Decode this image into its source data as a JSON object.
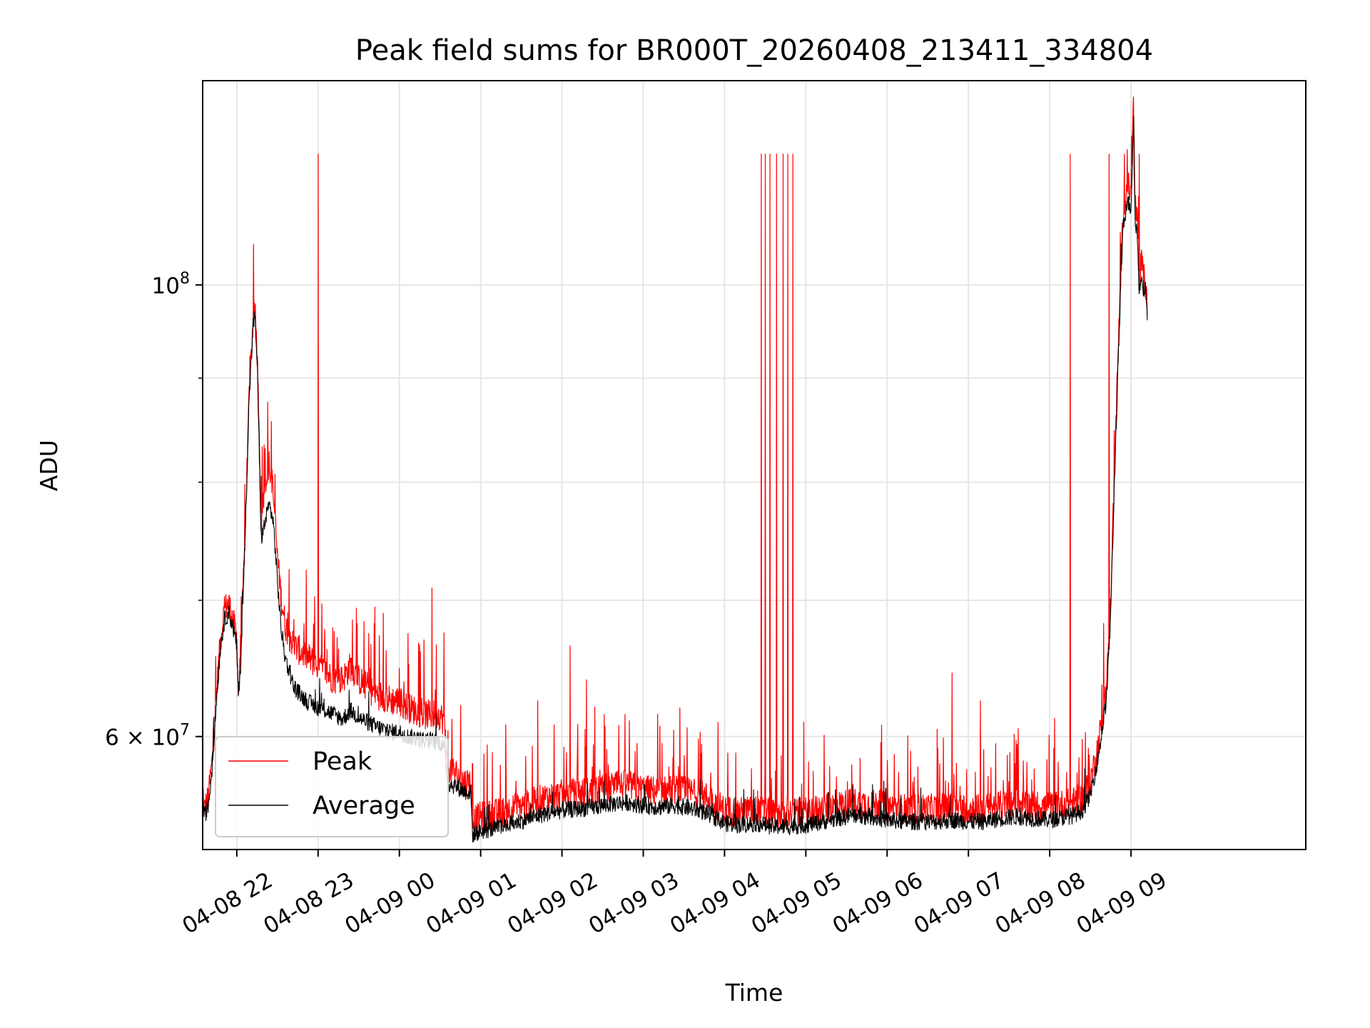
{
  "chart_data": {
    "type": "line",
    "title": "Peak field sums for BR000T_20260408_213411_334804",
    "xlabel": "Time",
    "ylabel": "ADU",
    "yscale": "log",
    "xlim_hours": [
      -2.42,
      11.15
    ],
    "ylim": [
      52800000,
      126000000
    ],
    "grid": true,
    "legend_position": "lower-left",
    "y_major_ticks": [
      {
        "value": 100000000,
        "base": "10",
        "exp": "8",
        "mantissa": ""
      },
      {
        "value": 60000000,
        "base": "10",
        "exp": "7",
        "mantissa": "6 × "
      }
    ],
    "y_minor_gridlines": [
      70000000,
      80000000,
      90000000
    ],
    "x_ticks": [
      {
        "hour": -2,
        "label": "04-08 22"
      },
      {
        "hour": -1,
        "label": "04-08 23"
      },
      {
        "hour": 0,
        "label": "04-09 00"
      },
      {
        "hour": 1,
        "label": "04-09 01"
      },
      {
        "hour": 2,
        "label": "04-09 02"
      },
      {
        "hour": 3,
        "label": "04-09 03"
      },
      {
        "hour": 4,
        "label": "04-09 04"
      },
      {
        "hour": 5,
        "label": "04-09 05"
      },
      {
        "hour": 6,
        "label": "04-09 06"
      },
      {
        "hour": 7,
        "label": "04-09 07"
      },
      {
        "hour": 8,
        "label": "04-09 08"
      },
      {
        "hour": 9,
        "label": "04-09 09"
      }
    ],
    "series": [
      {
        "name": "Peak",
        "color": "#ff0000",
        "note": "hours relative to 04-09 00:00; values in ADU",
        "points": [
          [
            -2.42,
            56800000
          ],
          [
            -2.4,
            55200000
          ],
          [
            -2.35,
            56000000
          ],
          [
            -2.3,
            58500000
          ],
          [
            -2.25,
            63000000
          ],
          [
            -2.2,
            67000000
          ],
          [
            -2.15,
            69300000
          ],
          [
            -2.1,
            69800000
          ],
          [
            -2.05,
            68500000
          ],
          [
            -2.0,
            67000000
          ],
          [
            -1.98,
            63000000
          ],
          [
            -1.95,
            66000000
          ],
          [
            -1.9,
            75000000
          ],
          [
            -1.85,
            88000000
          ],
          [
            -1.8,
            96000000
          ],
          [
            -1.78,
            97500000
          ],
          [
            -1.75,
            93000000
          ],
          [
            -1.7,
            76000000
          ],
          [
            -1.65,
            80000000
          ],
          [
            -1.6,
            82000000
          ],
          [
            -1.55,
            79000000
          ],
          [
            -1.5,
            73500000
          ],
          [
            -1.45,
            70000000
          ],
          [
            -1.4,
            68000000
          ],
          [
            -1.3,
            66500000
          ],
          [
            -1.2,
            66000000
          ],
          [
            -1.1,
            65500000
          ],
          [
            -1.0,
            65000000
          ],
          [
            -0.9,
            64500000
          ],
          [
            -0.8,
            64000000
          ],
          [
            -0.7,
            64000000
          ],
          [
            -0.6,
            65000000
          ],
          [
            -0.5,
            64000000
          ],
          [
            -0.4,
            63500000
          ],
          [
            -0.3,
            63000000
          ],
          [
            -0.2,
            62800000
          ],
          [
            -0.1,
            62500000
          ],
          [
            0.0,
            62500000
          ],
          [
            0.1,
            62000000
          ],
          [
            0.2,
            61800000
          ],
          [
            0.3,
            61500000
          ],
          [
            0.4,
            61500000
          ],
          [
            0.5,
            61500000
          ],
          [
            0.55,
            61000000
          ],
          [
            0.6,
            58000000
          ],
          [
            0.7,
            57500000
          ],
          [
            0.8,
            57000000
          ],
          [
            0.88,
            57000000
          ],
          [
            0.9,
            54500000
          ],
          [
            1.0,
            54800000
          ],
          [
            1.2,
            55000000
          ],
          [
            1.4,
            55300000
          ],
          [
            1.6,
            55600000
          ],
          [
            1.8,
            56000000
          ],
          [
            2.0,
            56200000
          ],
          [
            2.2,
            56300000
          ],
          [
            2.4,
            56400000
          ],
          [
            2.6,
            56700000
          ],
          [
            2.8,
            56800000
          ],
          [
            3.0,
            56500000
          ],
          [
            3.2,
            56400000
          ],
          [
            3.4,
            56500000
          ],
          [
            3.6,
            56300000
          ],
          [
            3.8,
            56000000
          ],
          [
            4.0,
            55200000
          ],
          [
            4.2,
            55100000
          ],
          [
            4.4,
            55200000
          ],
          [
            4.6,
            55000000
          ],
          [
            4.8,
            55000000
          ],
          [
            5.0,
            55100000
          ],
          [
            5.2,
            55300000
          ],
          [
            5.4,
            55500000
          ],
          [
            5.6,
            55700000
          ],
          [
            5.8,
            55600000
          ],
          [
            6.0,
            55400000
          ],
          [
            6.2,
            55300000
          ],
          [
            6.4,
            55300000
          ],
          [
            6.6,
            55300000
          ],
          [
            6.8,
            55400000
          ],
          [
            7.0,
            55300000
          ],
          [
            7.2,
            55300000
          ],
          [
            7.4,
            55500000
          ],
          [
            7.6,
            55600000
          ],
          [
            7.8,
            55500000
          ],
          [
            8.0,
            55400000
          ],
          [
            8.2,
            55600000
          ],
          [
            8.3,
            55700000
          ],
          [
            8.4,
            56000000
          ],
          [
            8.5,
            57000000
          ],
          [
            8.6,
            59500000
          ],
          [
            8.7,
            63500000
          ],
          [
            8.75,
            70000000
          ],
          [
            8.8,
            82000000
          ],
          [
            8.85,
            95000000
          ],
          [
            8.9,
            108000000
          ],
          [
            8.95,
            112000000
          ],
          [
            9.0,
            111000000
          ],
          [
            9.03,
            123000000
          ],
          [
            9.05,
            110000000
          ],
          [
            9.08,
            107000000
          ],
          [
            9.1,
            100000000
          ],
          [
            9.13,
            103000000
          ],
          [
            9.15,
            101000000
          ],
          [
            9.17,
            100500000
          ],
          [
            9.2,
            98000000
          ]
        ],
        "spikes": [
          [
            -2.42,
            116000000
          ],
          [
            -1.0,
            116000000
          ],
          [
            -0.3,
            69500000
          ],
          [
            -0.2,
            69000000
          ],
          [
            0.4,
            71000000
          ],
          [
            0.55,
            67500000
          ],
          [
            1.7,
            62500000
          ],
          [
            2.1,
            66500000
          ],
          [
            2.3,
            64000000
          ],
          [
            3.45,
            62000000
          ],
          [
            3.92,
            61000000
          ],
          [
            4.45,
            116000000
          ],
          [
            4.5,
            116000000
          ],
          [
            4.56,
            116000000
          ],
          [
            4.64,
            116000000
          ],
          [
            4.72,
            116000000
          ],
          [
            4.78,
            116000000
          ],
          [
            4.84,
            116000000
          ],
          [
            5.93,
            60800000
          ],
          [
            6.8,
            64500000
          ],
          [
            7.15,
            62500000
          ],
          [
            7.6,
            59500000
          ],
          [
            8.25,
            116000000
          ],
          [
            8.73,
            116000000
          ],
          [
            8.92,
            116000000
          ],
          [
            9.1,
            116000000
          ]
        ]
      },
      {
        "name": "Average",
        "color": "#000000",
        "note": "hours relative to 04-09 00:00; values in ADU",
        "points": [
          [
            -2.42,
            56500000
          ],
          [
            -2.4,
            54800000
          ],
          [
            -2.35,
            55500000
          ],
          [
            -2.3,
            58000000
          ],
          [
            -2.25,
            62500000
          ],
          [
            -2.2,
            66500000
          ],
          [
            -2.15,
            68500000
          ],
          [
            -2.1,
            69000000
          ],
          [
            -2.05,
            68000000
          ],
          [
            -2.0,
            66500000
          ],
          [
            -1.98,
            62700000
          ],
          [
            -1.95,
            65500000
          ],
          [
            -1.9,
            74500000
          ],
          [
            -1.85,
            87500000
          ],
          [
            -1.8,
            95500000
          ],
          [
            -1.78,
            96500000
          ],
          [
            -1.75,
            92000000
          ],
          [
            -1.7,
            75000000
          ],
          [
            -1.65,
            76500000
          ],
          [
            -1.6,
            78000000
          ],
          [
            -1.55,
            76500000
          ],
          [
            -1.5,
            71500000
          ],
          [
            -1.45,
            67500000
          ],
          [
            -1.4,
            65500000
          ],
          [
            -1.3,
            63500000
          ],
          [
            -1.2,
            62800000
          ],
          [
            -1.1,
            62300000
          ],
          [
            -1.0,
            62000000
          ],
          [
            -0.9,
            61800000
          ],
          [
            -0.8,
            61500000
          ],
          [
            -0.7,
            61200000
          ],
          [
            -0.6,
            61800000
          ],
          [
            -0.5,
            61300000
          ],
          [
            -0.4,
            61000000
          ],
          [
            -0.3,
            60700000
          ],
          [
            -0.2,
            60500000
          ],
          [
            -0.1,
            60300000
          ],
          [
            0.0,
            60300000
          ],
          [
            0.1,
            60000000
          ],
          [
            0.2,
            59900000
          ],
          [
            0.3,
            59700000
          ],
          [
            0.4,
            59700000
          ],
          [
            0.5,
            59600000
          ],
          [
            0.55,
            59300000
          ],
          [
            0.6,
            56900000
          ],
          [
            0.7,
            56700000
          ],
          [
            0.8,
            56400000
          ],
          [
            0.88,
            56300000
          ],
          [
            0.9,
            53700000
          ],
          [
            1.0,
            53900000
          ],
          [
            1.2,
            54100000
          ],
          [
            1.4,
            54400000
          ],
          [
            1.6,
            54700000
          ],
          [
            1.8,
            55000000
          ],
          [
            2.0,
            55200000
          ],
          [
            2.2,
            55300000
          ],
          [
            2.4,
            55400000
          ],
          [
            2.6,
            55600000
          ],
          [
            2.8,
            55700000
          ],
          [
            3.0,
            55500000
          ],
          [
            3.2,
            55400000
          ],
          [
            3.4,
            55500000
          ],
          [
            3.6,
            55300000
          ],
          [
            3.8,
            55000000
          ],
          [
            4.0,
            54400000
          ],
          [
            4.2,
            54300000
          ],
          [
            4.4,
            54400000
          ],
          [
            4.6,
            54200000
          ],
          [
            4.8,
            54200000
          ],
          [
            5.0,
            54300000
          ],
          [
            5.2,
            54500000
          ],
          [
            5.4,
            54700000
          ],
          [
            5.6,
            54900000
          ],
          [
            5.8,
            54800000
          ],
          [
            6.0,
            54600000
          ],
          [
            6.2,
            54500000
          ],
          [
            6.4,
            54500000
          ],
          [
            6.6,
            54500000
          ],
          [
            6.8,
            54600000
          ],
          [
            7.0,
            54500000
          ],
          [
            7.2,
            54500000
          ],
          [
            7.4,
            54700000
          ],
          [
            7.6,
            54800000
          ],
          [
            7.8,
            54700000
          ],
          [
            8.0,
            54600000
          ],
          [
            8.2,
            54800000
          ],
          [
            8.3,
            54900000
          ],
          [
            8.4,
            55200000
          ],
          [
            8.5,
            56200000
          ],
          [
            8.6,
            58700000
          ],
          [
            8.7,
            62700000
          ],
          [
            8.75,
            69000000
          ],
          [
            8.8,
            81000000
          ],
          [
            8.85,
            93500000
          ],
          [
            8.9,
            106500000
          ],
          [
            8.95,
            110000000
          ],
          [
            9.0,
            109000000
          ],
          [
            9.03,
            120000000
          ],
          [
            9.05,
            108000000
          ],
          [
            9.08,
            105500000
          ],
          [
            9.1,
            99000000
          ],
          [
            9.13,
            101500000
          ],
          [
            9.15,
            99800000
          ],
          [
            9.17,
            99500000
          ],
          [
            9.2,
            97000000
          ]
        ]
      }
    ],
    "legend": [
      {
        "label": "Peak",
        "color": "#ff0000"
      },
      {
        "label": "Average",
        "color": "#000000"
      }
    ]
  }
}
